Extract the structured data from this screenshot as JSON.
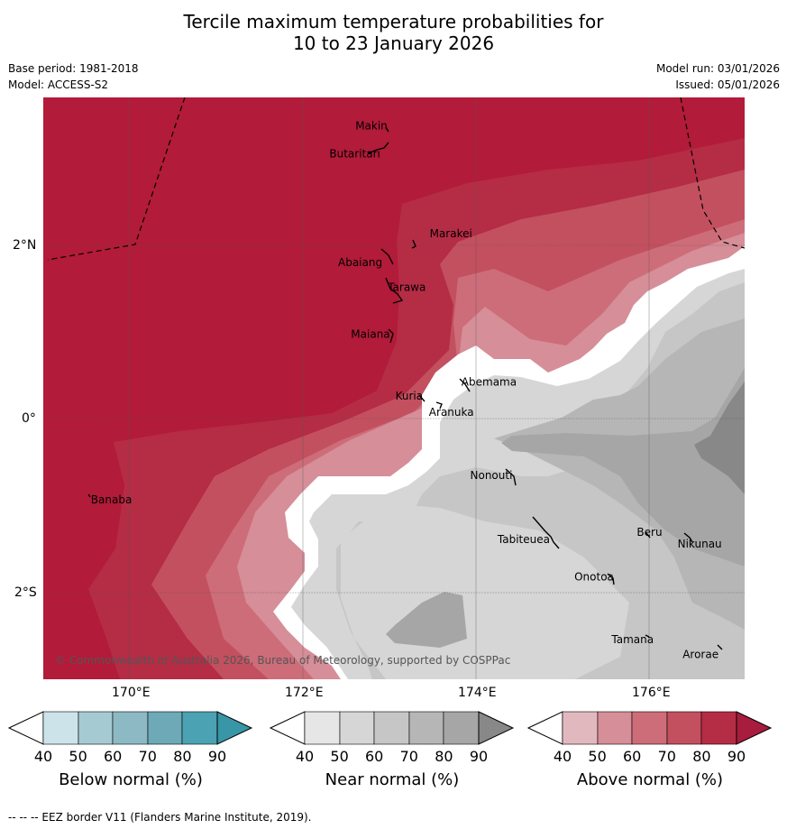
{
  "title_line1": "Tercile maximum temperature probabilities for",
  "title_line2": "10 to 23 January 2026",
  "meta": {
    "base_period": "Base period: 1981-2018",
    "model": "Model: ACCESS-S2",
    "model_run": "Model run: 03/01/2026",
    "issued": "Issued: 05/01/2026"
  },
  "axes": {
    "x_ticks": [
      "170°E",
      "172°E",
      "174°E",
      "176°E"
    ],
    "y_ticks": [
      "2°N",
      "0°",
      "2°S"
    ]
  },
  "map": {
    "lon_range": [
      169.0,
      177.1
    ],
    "lat_range": [
      -3.0,
      3.7
    ],
    "places": [
      {
        "name": "Makin",
        "lon": 173.0,
        "lat": 3.35
      },
      {
        "name": "Butaritari",
        "lon": 172.95,
        "lat": 3.05
      },
      {
        "name": "Marakei",
        "lon": 173.4,
        "lat": 2.05
      },
      {
        "name": "Abaiang",
        "lon": 172.8,
        "lat": 1.8
      },
      {
        "name": "Tarawa",
        "lon": 173.0,
        "lat": 1.45
      },
      {
        "name": "Maiana",
        "lon": 172.97,
        "lat": 0.95
      },
      {
        "name": "Abemama",
        "lon": 173.85,
        "lat": 0.4
      },
      {
        "name": "Kuria",
        "lon": 173.4,
        "lat": 0.22
      },
      {
        "name": "Aranuka",
        "lon": 173.6,
        "lat": 0.16
      },
      {
        "name": "Nonouti",
        "lon": 174.45,
        "lat": -0.65
      },
      {
        "name": "Tabiteuea",
        "lon": 174.85,
        "lat": -1.35
      },
      {
        "name": "Beru",
        "lon": 175.98,
        "lat": -1.33
      },
      {
        "name": "Nikunau",
        "lon": 176.45,
        "lat": -1.36
      },
      {
        "name": "Onotoa",
        "lon": 175.55,
        "lat": -1.8
      },
      {
        "name": "Tamana",
        "lon": 175.98,
        "lat": -2.5
      },
      {
        "name": "Arorae",
        "lon": 176.8,
        "lat": -2.65
      },
      {
        "name": "Banaba",
        "lon": 169.55,
        "lat": -0.87
      }
    ],
    "copyright": "© Commonwealth of Australia 2026, Bureau of Meteorology, supported by COSPPac",
    "colors": {
      "above": [
        "#e2b8bf",
        "#d68e98",
        "#cd6d79",
        "#c3505f",
        "#b52c45",
        "#b21b39"
      ],
      "near": [
        "#e6e6e6",
        "#d6d6d6",
        "#c6c6c6",
        "#b6b6b6",
        "#a6a6a6",
        "#888888"
      ],
      "below": [
        "#cce3ea",
        "#a6cad2",
        "#8db9c4",
        "#6ea9b8",
        "#4aa2b2",
        "#3896a6"
      ]
    }
  },
  "colorbars": [
    {
      "label": "Below normal (%)",
      "ticks": [
        "40",
        "50",
        "60",
        "70",
        "80",
        "90"
      ]
    },
    {
      "label": "Near normal (%)",
      "ticks": [
        "40",
        "50",
        "60",
        "70",
        "80",
        "90"
      ]
    },
    {
      "label": "Above normal (%)",
      "ticks": [
        "40",
        "50",
        "60",
        "70",
        "80",
        "90"
      ]
    }
  ],
  "footer": "-- -- -- EEZ border V11 (Flanders Marine Institute, 2019)."
}
